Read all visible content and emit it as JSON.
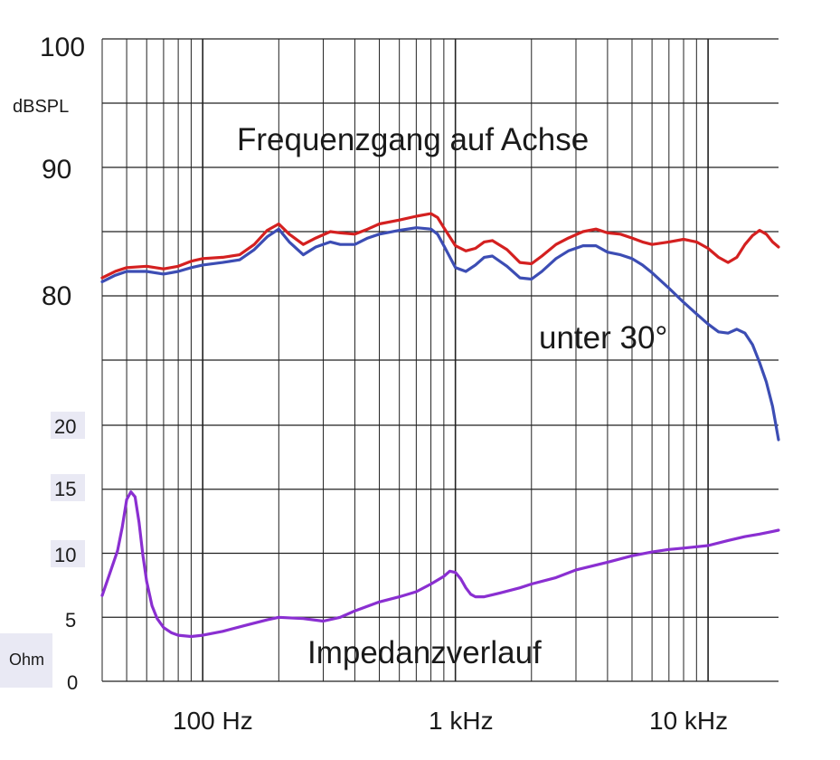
{
  "chart_data": {
    "type": "line",
    "title": "Frequenzgang auf Achse",
    "x_scale": "log",
    "xlim": [
      40,
      19000
    ],
    "x_ticks": [
      {
        "value": 100,
        "label": "100 Hz"
      },
      {
        "value": 1000,
        "label": "1 kHz"
      },
      {
        "value": 10000,
        "label": "10 kHz"
      }
    ],
    "spl_axis": {
      "unit": "dBSPL",
      "range": [
        75,
        100
      ],
      "ticks": [
        {
          "value": 100,
          "label": "100"
        },
        {
          "value": 90,
          "label": "90"
        },
        {
          "value": 80,
          "label": "80"
        }
      ]
    },
    "impedance_axis": {
      "unit": "Ohm",
      "range": [
        0,
        20
      ],
      "ticks": [
        {
          "value": 20,
          "label": "20"
        },
        {
          "value": 15,
          "label": "15"
        },
        {
          "value": 10,
          "label": "10"
        },
        {
          "value": 5,
          "label": "5"
        },
        {
          "value": 0,
          "label": "0"
        }
      ]
    },
    "annotations": {
      "off_axis": "unter 30°",
      "impedance": "Impedanzverlauf"
    },
    "series": [
      {
        "name": "Frequenzgang auf Achse",
        "axis": "spl",
        "color": "#d42020",
        "points": [
          [
            40,
            81.4
          ],
          [
            45,
            81.9
          ],
          [
            50,
            82.2
          ],
          [
            60,
            82.3
          ],
          [
            70,
            82.1
          ],
          [
            80,
            82.3
          ],
          [
            90,
            82.7
          ],
          [
            100,
            82.9
          ],
          [
            120,
            83.0
          ],
          [
            140,
            83.2
          ],
          [
            160,
            84.0
          ],
          [
            180,
            85.1
          ],
          [
            200,
            85.6
          ],
          [
            220,
            84.8
          ],
          [
            250,
            84.0
          ],
          [
            280,
            84.5
          ],
          [
            320,
            85.0
          ],
          [
            350,
            84.9
          ],
          [
            400,
            84.8
          ],
          [
            450,
            85.2
          ],
          [
            500,
            85.6
          ],
          [
            600,
            85.9
          ],
          [
            700,
            86.2
          ],
          [
            800,
            86.4
          ],
          [
            850,
            86.1
          ],
          [
            900,
            85.3
          ],
          [
            1000,
            83.9
          ],
          [
            1100,
            83.5
          ],
          [
            1200,
            83.7
          ],
          [
            1300,
            84.2
          ],
          [
            1400,
            84.3
          ],
          [
            1600,
            83.6
          ],
          [
            1800,
            82.6
          ],
          [
            2000,
            82.5
          ],
          [
            2200,
            83.1
          ],
          [
            2500,
            84.0
          ],
          [
            2800,
            84.5
          ],
          [
            3200,
            85.0
          ],
          [
            3600,
            85.2
          ],
          [
            4000,
            84.9
          ],
          [
            4500,
            84.8
          ],
          [
            5000,
            84.5
          ],
          [
            5500,
            84.2
          ],
          [
            6000,
            84.0
          ],
          [
            7000,
            84.2
          ],
          [
            8000,
            84.4
          ],
          [
            9000,
            84.2
          ],
          [
            10000,
            83.7
          ],
          [
            11000,
            83.0
          ],
          [
            12000,
            82.6
          ],
          [
            13000,
            83.0
          ],
          [
            14000,
            84.0
          ],
          [
            15000,
            84.7
          ],
          [
            16000,
            85.1
          ],
          [
            17000,
            84.8
          ],
          [
            18000,
            84.2
          ],
          [
            19000,
            83.8
          ]
        ]
      },
      {
        "name": "unter 30°",
        "axis": "spl",
        "color": "#3c4db4",
        "points": [
          [
            40,
            81.1
          ],
          [
            45,
            81.6
          ],
          [
            50,
            81.9
          ],
          [
            60,
            81.9
          ],
          [
            70,
            81.7
          ],
          [
            80,
            81.9
          ],
          [
            90,
            82.2
          ],
          [
            100,
            82.4
          ],
          [
            120,
            82.6
          ],
          [
            140,
            82.8
          ],
          [
            160,
            83.6
          ],
          [
            180,
            84.6
          ],
          [
            200,
            85.2
          ],
          [
            220,
            84.2
          ],
          [
            250,
            83.2
          ],
          [
            280,
            83.8
          ],
          [
            320,
            84.2
          ],
          [
            350,
            84.0
          ],
          [
            400,
            84.0
          ],
          [
            450,
            84.5
          ],
          [
            500,
            84.8
          ],
          [
            600,
            85.1
          ],
          [
            700,
            85.3
          ],
          [
            800,
            85.2
          ],
          [
            850,
            84.8
          ],
          [
            900,
            83.9
          ],
          [
            1000,
            82.2
          ],
          [
            1100,
            81.9
          ],
          [
            1200,
            82.4
          ],
          [
            1300,
            83.0
          ],
          [
            1400,
            83.1
          ],
          [
            1600,
            82.3
          ],
          [
            1800,
            81.4
          ],
          [
            2000,
            81.3
          ],
          [
            2200,
            81.9
          ],
          [
            2500,
            82.9
          ],
          [
            2800,
            83.5
          ],
          [
            3200,
            83.9
          ],
          [
            3600,
            83.9
          ],
          [
            4000,
            83.4
          ],
          [
            4500,
            83.2
          ],
          [
            5000,
            82.9
          ],
          [
            5500,
            82.4
          ],
          [
            6000,
            81.8
          ],
          [
            7000,
            80.6
          ],
          [
            8000,
            79.5
          ],
          [
            9000,
            78.6
          ],
          [
            10000,
            77.8
          ],
          [
            11000,
            77.2
          ],
          [
            12000,
            77.1
          ],
          [
            13000,
            77.4
          ],
          [
            14000,
            77.1
          ],
          [
            15000,
            76.2
          ],
          [
            16000,
            74.8
          ],
          [
            17000,
            73.3
          ],
          [
            18000,
            71.4
          ],
          [
            19000,
            68.8
          ]
        ]
      },
      {
        "name": "Impedanzverlauf",
        "axis": "impedance",
        "color": "#8a2fd1",
        "points": [
          [
            40,
            6.7
          ],
          [
            43,
            8.5
          ],
          [
            46,
            10.2
          ],
          [
            48,
            12.0
          ],
          [
            50,
            14.2
          ],
          [
            52,
            14.8
          ],
          [
            54,
            14.4
          ],
          [
            56,
            12.4
          ],
          [
            58,
            9.8
          ],
          [
            60,
            7.8
          ],
          [
            63,
            5.9
          ],
          [
            66,
            4.9
          ],
          [
            70,
            4.2
          ],
          [
            75,
            3.8
          ],
          [
            80,
            3.6
          ],
          [
            90,
            3.5
          ],
          [
            100,
            3.6
          ],
          [
            120,
            3.9
          ],
          [
            150,
            4.4
          ],
          [
            180,
            4.8
          ],
          [
            200,
            5.0
          ],
          [
            250,
            4.9
          ],
          [
            300,
            4.7
          ],
          [
            350,
            5.0
          ],
          [
            400,
            5.5
          ],
          [
            500,
            6.2
          ],
          [
            600,
            6.6
          ],
          [
            700,
            7.0
          ],
          [
            800,
            7.6
          ],
          [
            900,
            8.2
          ],
          [
            950,
            8.6
          ],
          [
            1000,
            8.5
          ],
          [
            1050,
            8.0
          ],
          [
            1100,
            7.3
          ],
          [
            1150,
            6.8
          ],
          [
            1200,
            6.6
          ],
          [
            1300,
            6.6
          ],
          [
            1500,
            6.9
          ],
          [
            1800,
            7.3
          ],
          [
            2000,
            7.6
          ],
          [
            2500,
            8.1
          ],
          [
            3000,
            8.7
          ],
          [
            4000,
            9.3
          ],
          [
            5000,
            9.8
          ],
          [
            6000,
            10.1
          ],
          [
            7000,
            10.3
          ],
          [
            8000,
            10.4
          ],
          [
            10000,
            10.6
          ],
          [
            12000,
            11.0
          ],
          [
            14000,
            11.3
          ],
          [
            16000,
            11.5
          ],
          [
            18000,
            11.7
          ],
          [
            19000,
            11.8
          ]
        ]
      }
    ]
  }
}
